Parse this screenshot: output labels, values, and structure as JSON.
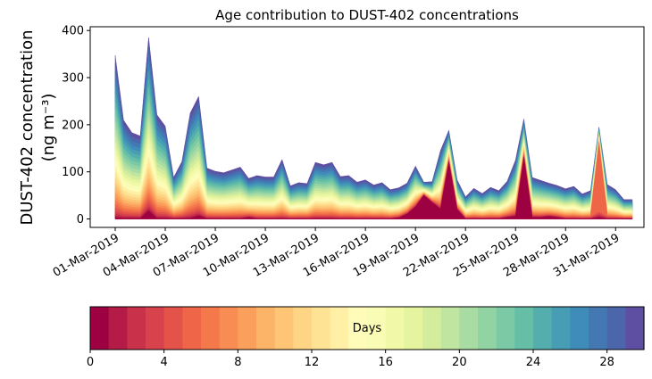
{
  "chart_data": {
    "type": "area",
    "title": "Age contribution to DUST-402 concentrations",
    "ylabel_line1": "DUST-402 concentration",
    "ylabel_line2": "(ng m⁻³)",
    "ylim": [
      -18,
      408
    ],
    "yticks": [
      0,
      100,
      200,
      300,
      400
    ],
    "xticks": [
      {
        "day": 0,
        "label": "01-Mar-2019"
      },
      {
        "day": 3,
        "label": "04-Mar-2019"
      },
      {
        "day": 6,
        "label": "07-Mar-2019"
      },
      {
        "day": 9,
        "label": "10-Mar-2019"
      },
      {
        "day": 12,
        "label": "13-Mar-2019"
      },
      {
        "day": 15,
        "label": "16-Mar-2019"
      },
      {
        "day": 18,
        "label": "19-Mar-2019"
      },
      {
        "day": 21,
        "label": "22-Mar-2019"
      },
      {
        "day": 24,
        "label": "25-Mar-2019"
      },
      {
        "day": 27,
        "label": "28-Mar-2019"
      },
      {
        "day": 30,
        "label": "31-Mar-2019"
      }
    ],
    "xlim": [
      -1.5,
      31.7
    ],
    "x": [
      0,
      0.5,
      1,
      1.5,
      2,
      2.5,
      3,
      3.5,
      4,
      4.5,
      5,
      5.5,
      6,
      6.5,
      7,
      7.5,
      8,
      8.5,
      9,
      9.5,
      10,
      10.5,
      11,
      11.5,
      12,
      12.5,
      13,
      13.5,
      14,
      14.5,
      15,
      15.5,
      16,
      16.5,
      17,
      17.5,
      18,
      18.5,
      19,
      19.5,
      20,
      20.5,
      21,
      21.5,
      22,
      22.5,
      23,
      23.5,
      24,
      24.5,
      25,
      25.5,
      26,
      26.5,
      27,
      27.5,
      28,
      28.5,
      29,
      29.5,
      30,
      30.5,
      31
    ],
    "total": [
      347,
      210,
      183,
      176,
      385,
      221,
      197,
      88,
      122,
      225,
      260,
      108,
      101,
      98,
      104,
      110,
      86,
      92,
      89,
      89,
      126,
      70,
      77,
      75,
      120,
      115,
      120,
      90,
      92,
      78,
      83,
      72,
      77,
      62,
      66,
      76,
      112,
      78,
      79,
      145,
      188,
      83,
      47,
      65,
      54,
      67,
      60,
      80,
      125,
      212,
      88,
      82,
      76,
      71,
      64,
      69,
      53,
      60,
      195,
      73,
      62,
      41,
      41
    ],
    "core": [
      0,
      0,
      0,
      0,
      15,
      0,
      0,
      0,
      0,
      0,
      5,
      0,
      0,
      0,
      0,
      0,
      3,
      0,
      0,
      0,
      0,
      0,
      0,
      0,
      0,
      0,
      0,
      0,
      0,
      0,
      0,
      0,
      0,
      0,
      2,
      10,
      25,
      50,
      35,
      20,
      120,
      20,
      0,
      0,
      0,
      0,
      0,
      3,
      5,
      130,
      3,
      3,
      5,
      3,
      0,
      0,
      0,
      0,
      2,
      0,
      0,
      0,
      0
    ],
    "orange": [
      0,
      0,
      0,
      0,
      0,
      0,
      0,
      0,
      0,
      0,
      0,
      0,
      0,
      0,
      0,
      0,
      0,
      0,
      0,
      0,
      0,
      0,
      0,
      0,
      0,
      0,
      0,
      0,
      0,
      0,
      0,
      0,
      0,
      0,
      0,
      0,
      0,
      0,
      0,
      0,
      0,
      0,
      0,
      0,
      0,
      0,
      0,
      0,
      0,
      0,
      0,
      0,
      0,
      0,
      0,
      0,
      0,
      0,
      160,
      0,
      0,
      0,
      0
    ],
    "colorbar": {
      "label": "Days",
      "min": 0,
      "max": 30,
      "ticks": [
        0,
        4,
        8,
        12,
        16,
        20,
        24,
        28
      ],
      "colors": [
        "#9e0142",
        "#b41b47",
        "#c9304a",
        "#d8424c",
        "#e3534a",
        "#ee6548",
        "#f4784a",
        "#f88c53",
        "#fba05c",
        "#fcb468",
        "#fdc575",
        "#fed585",
        "#fee395",
        "#fff0a6",
        "#fffbb8",
        "#f9fcb4",
        "#f1f9a9",
        "#e5f49e",
        "#d4ed9c",
        "#bfe5a0",
        "#a8dca3",
        "#92d3a4",
        "#7bc9a5",
        "#66bea6",
        "#54aead",
        "#479db3",
        "#3f8bb9",
        "#4478b3",
        "#4c66ac",
        "#5e4fa2"
      ]
    }
  }
}
